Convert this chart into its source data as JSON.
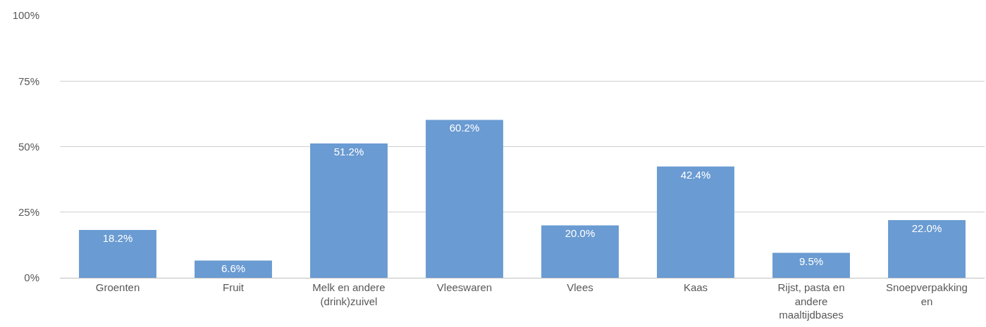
{
  "chart_data": {
    "type": "bar",
    "categories": [
      "Groenten",
      "Fruit",
      "Melk en andere (drink)zuivel",
      "Vleeswaren",
      "Vlees",
      "Kaas",
      "Rijst, pasta en andere maaltijdbases",
      "Snoepverpakkingen"
    ],
    "values": [
      18.2,
      6.6,
      51.2,
      60.2,
      20.0,
      42.4,
      9.5,
      22.0
    ],
    "value_labels": [
      "18.2%",
      "6.6%",
      "51.2%",
      "60.2%",
      "20.0%",
      "42.4%",
      "9.5%",
      "22.0%"
    ],
    "color": "#6a9bd2",
    "ylim": [
      0,
      100
    ],
    "yticks": [
      {
        "value": 0,
        "label": "0%"
      },
      {
        "value": 25,
        "label": "25%"
      },
      {
        "value": 50,
        "label": "50%"
      },
      {
        "value": 75,
        "label": "75%"
      },
      {
        "value": 100,
        "label": "100%"
      }
    ],
    "grid": "y"
  }
}
